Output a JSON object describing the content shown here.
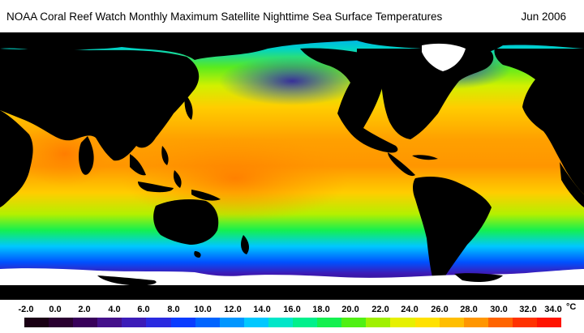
{
  "header": {
    "title": "NOAA Coral Reef Watch Monthly Maximum Satellite Nighttime Sea Surface Temperatures",
    "date": "Jun 2006"
  },
  "legend": {
    "unit": "°C",
    "ticks": [
      "-2.0",
      "0.0",
      "2.0",
      "4.0",
      "6.0",
      "8.0",
      "10.0",
      "12.0",
      "14.0",
      "16.0",
      "18.0",
      "20.0",
      "22.0",
      "24.0",
      "26.0",
      "28.0",
      "30.0",
      "32.0",
      "34.0"
    ],
    "colors": [
      "#1a0014",
      "#2a0030",
      "#38005a",
      "#44108a",
      "#3c1cb8",
      "#2a2ae0",
      "#0a3cff",
      "#0064ff",
      "#0096ff",
      "#00c8ff",
      "#00e6c8",
      "#00f08c",
      "#14f050",
      "#50f014",
      "#a0f000",
      "#e6f000",
      "#ffe100",
      "#ffbe00",
      "#ff9600",
      "#ff6400",
      "#ff3200",
      "#ff1400"
    ]
  },
  "map": {
    "land_color": "#000000",
    "ice_color": "#ffffff"
  }
}
